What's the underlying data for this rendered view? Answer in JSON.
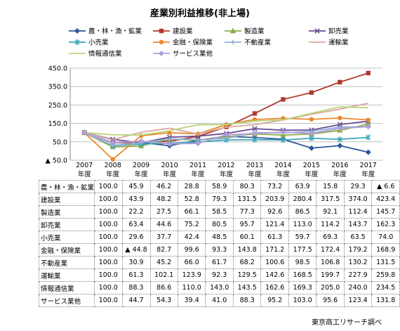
{
  "chart_data": {
    "type": "line",
    "title": "産業別利益推移(非上場)",
    "x": [
      "2007",
      "2008",
      "2009",
      "2010",
      "2011",
      "2012",
      "2013",
      "2014",
      "2015",
      "2016",
      "2017"
    ],
    "x_suffix": "年度",
    "ylim": [
      -50,
      450
    ],
    "y_ticks": [
      -50,
      50,
      150,
      250,
      350,
      450
    ],
    "y_tick_labels": [
      "▲ 50.0",
      "50.0",
      "150.0",
      "250.0",
      "350.0",
      "450.0"
    ],
    "grid": "horizontal",
    "legend_position": "top",
    "series": [
      {
        "name": "農・林・漁・鉱業",
        "color": "#2f5597",
        "marker": "diamond",
        "values": [
          100.0,
          45.9,
          46.2,
          28.8,
          58.9,
          80.3,
          73.2,
          63.9,
          15.8,
          29.3,
          -6.6
        ],
        "labels": [
          "100.0",
          "45.9",
          "46.2",
          "28.8",
          "58.9",
          "80.3",
          "73.2",
          "63.9",
          "15.8",
          "29.3",
          "▲ 6.6"
        ]
      },
      {
        "name": "建設業",
        "color": "#b03a2e",
        "marker": "square",
        "values": [
          100.0,
          43.9,
          48.2,
          52.8,
          79.3,
          131.5,
          203.9,
          280.4,
          317.5,
          374.0,
          423.4
        ],
        "labels": [
          "100.0",
          "43.9",
          "48.2",
          "52.8",
          "79.3",
          "131.5",
          "203.9",
          "280.4",
          "317.5",
          "374.0",
          "423.4"
        ]
      },
      {
        "name": "製造業",
        "color": "#8aac45",
        "marker": "triangle",
        "values": [
          100.0,
          22.2,
          27.5,
          66.1,
          58.5,
          77.3,
          92.6,
          86.5,
          92.1,
          112.4,
          145.7
        ],
        "labels": [
          "100.0",
          "22.2",
          "27.5",
          "66.1",
          "58.5",
          "77.3",
          "92.6",
          "86.5",
          "92.1",
          "112.4",
          "145.7"
        ]
      },
      {
        "name": "卸売業",
        "color": "#6a4b92",
        "marker": "x",
        "values": [
          100.0,
          63.4,
          44.6,
          75.2,
          80.5,
          95.7,
          121.4,
          113.0,
          114.2,
          143.7,
          162.3
        ],
        "labels": [
          "100.0",
          "63.4",
          "44.6",
          "75.2",
          "80.5",
          "95.7",
          "121.4",
          "113.0",
          "114.2",
          "143.7",
          "162.3"
        ]
      },
      {
        "name": "小売業",
        "color": "#3aa6b9",
        "marker": "star",
        "values": [
          100.0,
          29.6,
          37.7,
          42.4,
          48.5,
          60.1,
          61.3,
          59.7,
          69.3,
          63.5,
          74.0
        ],
        "labels": [
          "100.0",
          "29.6",
          "37.7",
          "42.4",
          "48.5",
          "60.1",
          "61.3",
          "59.7",
          "69.3",
          "63.5",
          "74.0"
        ]
      },
      {
        "name": "金融・保険業",
        "color": "#e98a2e",
        "marker": "circle",
        "values": [
          100.0,
          -44.8,
          82.7,
          99.6,
          93.3,
          143.8,
          171.2,
          177.5,
          172.4,
          179.2,
          168.9
        ],
        "labels": [
          "100.0",
          "▲ 44.8",
          "82.7",
          "99.6",
          "93.3",
          "143.8",
          "171.2",
          "177.5",
          "172.4",
          "179.2",
          "168.9"
        ]
      },
      {
        "name": "不動産業",
        "color": "#8fb2d9",
        "marker": "plus",
        "values": [
          100.0,
          30.9,
          45.2,
          66.0,
          61.7,
          68.2,
          100.6,
          98.5,
          106.8,
          130.2,
          131.5
        ],
        "labels": [
          "100.0",
          "30.9",
          "45.2",
          "66.0",
          "61.7",
          "68.2",
          "100.6",
          "98.5",
          "106.8",
          "130.2",
          "131.5"
        ]
      },
      {
        "name": "運輸業",
        "color": "#dba79f",
        "marker": "none",
        "values": [
          100.0,
          61.3,
          102.1,
          123.9,
          92.3,
          129.5,
          142.6,
          168.5,
          199.7,
          227.9,
          259.8
        ],
        "labels": [
          "100.0",
          "61.3",
          "102.1",
          "123.9",
          "92.3",
          "129.5",
          "142.6",
          "168.5",
          "199.7",
          "227.9",
          "259.8"
        ]
      },
      {
        "name": "情報通信業",
        "color": "#b7d67a",
        "marker": "none",
        "values": [
          100.0,
          88.3,
          86.6,
          110.0,
          143.0,
          143.5,
          162.6,
          169.3,
          205.0,
          240.0,
          234.5
        ],
        "labels": [
          "100.0",
          "88.3",
          "86.6",
          "110.0",
          "143.0",
          "143.5",
          "162.6",
          "169.3",
          "205.0",
          "240.0",
          "234.5"
        ]
      },
      {
        "name": "サービス業他",
        "color": "#b39ddb",
        "marker": "diamond",
        "values": [
          100.0,
          44.7,
          54.3,
          39.4,
          41.0,
          88.3,
          95.2,
          103.0,
          95.6,
          123.4,
          131.8
        ],
        "labels": [
          "100.0",
          "44.7",
          "54.3",
          "39.4",
          "41.0",
          "88.3",
          "95.2",
          "103.0",
          "95.6",
          "123.4",
          "131.8"
        ]
      }
    ]
  },
  "source_note": "東京商工リサーチ調べ"
}
